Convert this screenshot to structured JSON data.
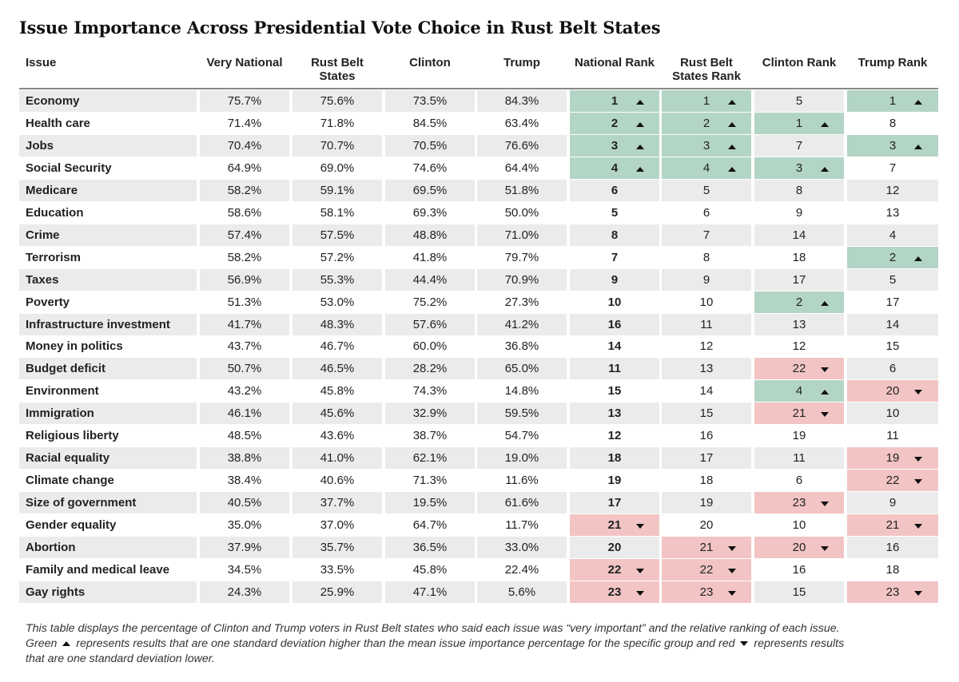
{
  "title": "Issue Importance Across Presidential Vote Choice in Rust Belt States",
  "columns": {
    "issue": "Issue",
    "very_national": "Very National",
    "rust_belt_states": "Rust Belt States",
    "clinton": "Clinton",
    "trump": "Trump",
    "national_rank": "National Rank",
    "rust_belt_rank": "Rust Belt States Rank",
    "clinton_rank": "Clinton Rank",
    "trump_rank": "Trump Rank"
  },
  "colors": {
    "up": "#b3d5c6",
    "down": "#f2c4c4",
    "stripe": "#ebebeb"
  },
  "rows": [
    {
      "issue": "Economy",
      "very_national": "75.7%",
      "rust_belt": "75.6%",
      "clinton": "73.5%",
      "trump": "84.3%",
      "national_rank": "1",
      "national_hl": "up",
      "rb_rank": "1",
      "rb_hl": "up",
      "clinton_rank": "5",
      "clinton_hl": "",
      "trump_rank": "1",
      "trump_hl": "up"
    },
    {
      "issue": "Health care",
      "very_national": "71.4%",
      "rust_belt": "71.8%",
      "clinton": "84.5%",
      "trump": "63.4%",
      "national_rank": "2",
      "national_hl": "up",
      "rb_rank": "2",
      "rb_hl": "up",
      "clinton_rank": "1",
      "clinton_hl": "up",
      "trump_rank": "8",
      "trump_hl": ""
    },
    {
      "issue": "Jobs",
      "very_national": "70.4%",
      "rust_belt": "70.7%",
      "clinton": "70.5%",
      "trump": "76.6%",
      "national_rank": "3",
      "national_hl": "up",
      "rb_rank": "3",
      "rb_hl": "up",
      "clinton_rank": "7",
      "clinton_hl": "",
      "trump_rank": "3",
      "trump_hl": "up"
    },
    {
      "issue": "Social Security",
      "very_national": "64.9%",
      "rust_belt": "69.0%",
      "clinton": "74.6%",
      "trump": "64.4%",
      "national_rank": "4",
      "national_hl": "up",
      "rb_rank": "4",
      "rb_hl": "up",
      "clinton_rank": "3",
      "clinton_hl": "up",
      "trump_rank": "7",
      "trump_hl": ""
    },
    {
      "issue": "Medicare",
      "very_national": "58.2%",
      "rust_belt": "59.1%",
      "clinton": "69.5%",
      "trump": "51.8%",
      "national_rank": "6",
      "national_hl": "",
      "rb_rank": "5",
      "rb_hl": "",
      "clinton_rank": "8",
      "clinton_hl": "",
      "trump_rank": "12",
      "trump_hl": ""
    },
    {
      "issue": "Education",
      "very_national": "58.6%",
      "rust_belt": "58.1%",
      "clinton": "69.3%",
      "trump": "50.0%",
      "national_rank": "5",
      "national_hl": "",
      "rb_rank": "6",
      "rb_hl": "",
      "clinton_rank": "9",
      "clinton_hl": "",
      "trump_rank": "13",
      "trump_hl": ""
    },
    {
      "issue": "Crime",
      "very_national": "57.4%",
      "rust_belt": "57.5%",
      "clinton": "48.8%",
      "trump": "71.0%",
      "national_rank": "8",
      "national_hl": "",
      "rb_rank": "7",
      "rb_hl": "",
      "clinton_rank": "14",
      "clinton_hl": "",
      "trump_rank": "4",
      "trump_hl": ""
    },
    {
      "issue": "Terrorism",
      "very_national": "58.2%",
      "rust_belt": "57.2%",
      "clinton": "41.8%",
      "trump": "79.7%",
      "national_rank": "7",
      "national_hl": "",
      "rb_rank": "8",
      "rb_hl": "",
      "clinton_rank": "18",
      "clinton_hl": "",
      "trump_rank": "2",
      "trump_hl": "up"
    },
    {
      "issue": "Taxes",
      "very_national": "56.9%",
      "rust_belt": "55.3%",
      "clinton": "44.4%",
      "trump": "70.9%",
      "national_rank": "9",
      "national_hl": "",
      "rb_rank": "9",
      "rb_hl": "",
      "clinton_rank": "17",
      "clinton_hl": "",
      "trump_rank": "5",
      "trump_hl": ""
    },
    {
      "issue": "Poverty",
      "very_national": "51.3%",
      "rust_belt": "53.0%",
      "clinton": "75.2%",
      "trump": "27.3%",
      "national_rank": "10",
      "national_hl": "",
      "rb_rank": "10",
      "rb_hl": "",
      "clinton_rank": "2",
      "clinton_hl": "up",
      "trump_rank": "17",
      "trump_hl": ""
    },
    {
      "issue": "Infrastructure investment",
      "very_national": "41.7%",
      "rust_belt": "48.3%",
      "clinton": "57.6%",
      "trump": "41.2%",
      "national_rank": "16",
      "national_hl": "",
      "rb_rank": "11",
      "rb_hl": "",
      "clinton_rank": "13",
      "clinton_hl": "",
      "trump_rank": "14",
      "trump_hl": ""
    },
    {
      "issue": "Money in politics",
      "very_national": "43.7%",
      "rust_belt": "46.7%",
      "clinton": "60.0%",
      "trump": "36.8%",
      "national_rank": "14",
      "national_hl": "",
      "rb_rank": "12",
      "rb_hl": "",
      "clinton_rank": "12",
      "clinton_hl": "",
      "trump_rank": "15",
      "trump_hl": ""
    },
    {
      "issue": "Budget deficit",
      "very_national": "50.7%",
      "rust_belt": "46.5%",
      "clinton": "28.2%",
      "trump": "65.0%",
      "national_rank": "11",
      "national_hl": "",
      "rb_rank": "13",
      "rb_hl": "",
      "clinton_rank": "22",
      "clinton_hl": "down",
      "trump_rank": "6",
      "trump_hl": ""
    },
    {
      "issue": "Environment",
      "very_national": "43.2%",
      "rust_belt": "45.8%",
      "clinton": "74.3%",
      "trump": "14.8%",
      "national_rank": "15",
      "national_hl": "",
      "rb_rank": "14",
      "rb_hl": "",
      "clinton_rank": "4",
      "clinton_hl": "up",
      "trump_rank": "20",
      "trump_hl": "down"
    },
    {
      "issue": "Immigration",
      "very_national": "46.1%",
      "rust_belt": "45.6%",
      "clinton": "32.9%",
      "trump": "59.5%",
      "national_rank": "13",
      "national_hl": "",
      "rb_rank": "15",
      "rb_hl": "",
      "clinton_rank": "21",
      "clinton_hl": "down",
      "trump_rank": "10",
      "trump_hl": ""
    },
    {
      "issue": "Religious liberty",
      "very_national": "48.5%",
      "rust_belt": "43.6%",
      "clinton": "38.7%",
      "trump": "54.7%",
      "national_rank": "12",
      "national_hl": "",
      "rb_rank": "16",
      "rb_hl": "",
      "clinton_rank": "19",
      "clinton_hl": "",
      "trump_rank": "11",
      "trump_hl": ""
    },
    {
      "issue": "Racial equality",
      "very_national": "38.8%",
      "rust_belt": "41.0%",
      "clinton": "62.1%",
      "trump": "19.0%",
      "national_rank": "18",
      "national_hl": "",
      "rb_rank": "17",
      "rb_hl": "",
      "clinton_rank": "11",
      "clinton_hl": "",
      "trump_rank": "19",
      "trump_hl": "down"
    },
    {
      "issue": "Climate change",
      "very_national": "38.4%",
      "rust_belt": "40.6%",
      "clinton": "71.3%",
      "trump": "11.6%",
      "national_rank": "19",
      "national_hl": "",
      "rb_rank": "18",
      "rb_hl": "",
      "clinton_rank": "6",
      "clinton_hl": "",
      "trump_rank": "22",
      "trump_hl": "down"
    },
    {
      "issue": "Size of government",
      "very_national": "40.5%",
      "rust_belt": "37.7%",
      "clinton": "19.5%",
      "trump": "61.6%",
      "national_rank": "17",
      "national_hl": "",
      "rb_rank": "19",
      "rb_hl": "",
      "clinton_rank": "23",
      "clinton_hl": "down",
      "trump_rank": "9",
      "trump_hl": ""
    },
    {
      "issue": "Gender equality",
      "very_national": "35.0%",
      "rust_belt": "37.0%",
      "clinton": "64.7%",
      "trump": "11.7%",
      "national_rank": "21",
      "national_hl": "down",
      "rb_rank": "20",
      "rb_hl": "",
      "clinton_rank": "10",
      "clinton_hl": "",
      "trump_rank": "21",
      "trump_hl": "down"
    },
    {
      "issue": "Abortion",
      "very_national": "37.9%",
      "rust_belt": "35.7%",
      "clinton": "36.5%",
      "trump": "33.0%",
      "national_rank": "20",
      "national_hl": "",
      "rb_rank": "21",
      "rb_hl": "down",
      "clinton_rank": "20",
      "clinton_hl": "down",
      "trump_rank": "16",
      "trump_hl": ""
    },
    {
      "issue": "Family and medical leave",
      "very_national": "34.5%",
      "rust_belt": "33.5%",
      "clinton": "45.8%",
      "trump": "22.4%",
      "national_rank": "22",
      "national_hl": "down",
      "rb_rank": "22",
      "rb_hl": "down",
      "clinton_rank": "16",
      "clinton_hl": "",
      "trump_rank": "18",
      "trump_hl": ""
    },
    {
      "issue": "Gay rights",
      "very_national": "24.3%",
      "rust_belt": "25.9%",
      "clinton": "47.1%",
      "trump": "5.6%",
      "national_rank": "23",
      "national_hl": "down",
      "rb_rank": "23",
      "rb_hl": "down",
      "clinton_rank": "15",
      "clinton_hl": "",
      "trump_rank": "23",
      "trump_hl": "down"
    }
  ],
  "footnote": {
    "line1": "This table displays the percentage of Clinton and Trump voters in Rust Belt states who said each issue was “very important” and the relative ranking of each issue.",
    "green": "Green",
    "line2_mid": "represents results that are one standard deviation higher than the mean issue importance percentage for the specific group and red",
    "line2_end": "represents results",
    "line3": "that are one standard deviation lower."
  }
}
